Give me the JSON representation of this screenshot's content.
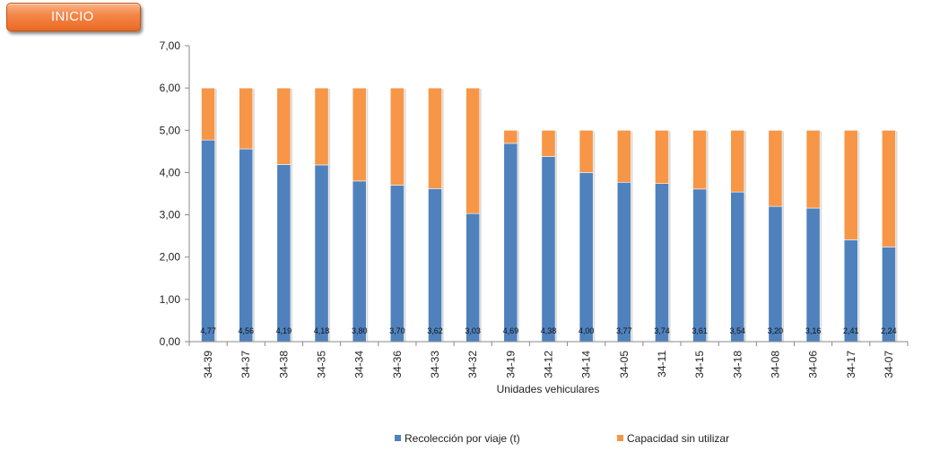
{
  "header": {
    "inicio_label": "INICIO"
  },
  "colors": {
    "recoleccion": "#4f81bd",
    "capacidad": "#f79646",
    "button": "#ea6a23"
  },
  "chart_data": {
    "type": "bar",
    "stacked": true,
    "title": "",
    "xlabel": "Unidades vehiculares",
    "ylabel": "",
    "ylim": [
      0,
      7
    ],
    "yticks": [
      "0,00",
      "1,00",
      "2,00",
      "3,00",
      "4,00",
      "5,00",
      "6,00",
      "7,00"
    ],
    "grid": false,
    "legend_position": "bottom",
    "categories": [
      "34-39",
      "34-37",
      "34-38",
      "34-35",
      "34-34",
      "34-36",
      "34-33",
      "34-32",
      "34-19",
      "34-12",
      "34-14",
      "34-05",
      "34-11",
      "34-15",
      "34-18",
      "34-08",
      "34-06",
      "34-17",
      "34-07"
    ],
    "series": [
      {
        "name": "Recolección por viaje (t)",
        "values": [
          4.77,
          4.56,
          4.19,
          4.18,
          3.8,
          3.7,
          3.62,
          3.03,
          4.69,
          4.38,
          4.0,
          3.77,
          3.74,
          3.61,
          3.54,
          3.2,
          3.16,
          2.41,
          2.24
        ],
        "labels": [
          "4,77",
          "4,56",
          "4,19",
          "4,18",
          "3,80",
          "3,70",
          "3,62",
          "3,03",
          "4,69",
          "4,38",
          "4,00",
          "3,77",
          "3,74",
          "3,61",
          "3,54",
          "3,20",
          "3,16",
          "2,41",
          "2,24"
        ]
      },
      {
        "name": "Capacidad sin utilizar",
        "values": [
          1.23,
          1.44,
          1.81,
          1.82,
          2.2,
          2.3,
          2.38,
          2.97,
          0.31,
          0.62,
          1.0,
          1.23,
          1.26,
          1.39,
          1.46,
          1.8,
          1.84,
          2.59,
          2.76
        ]
      }
    ]
  }
}
